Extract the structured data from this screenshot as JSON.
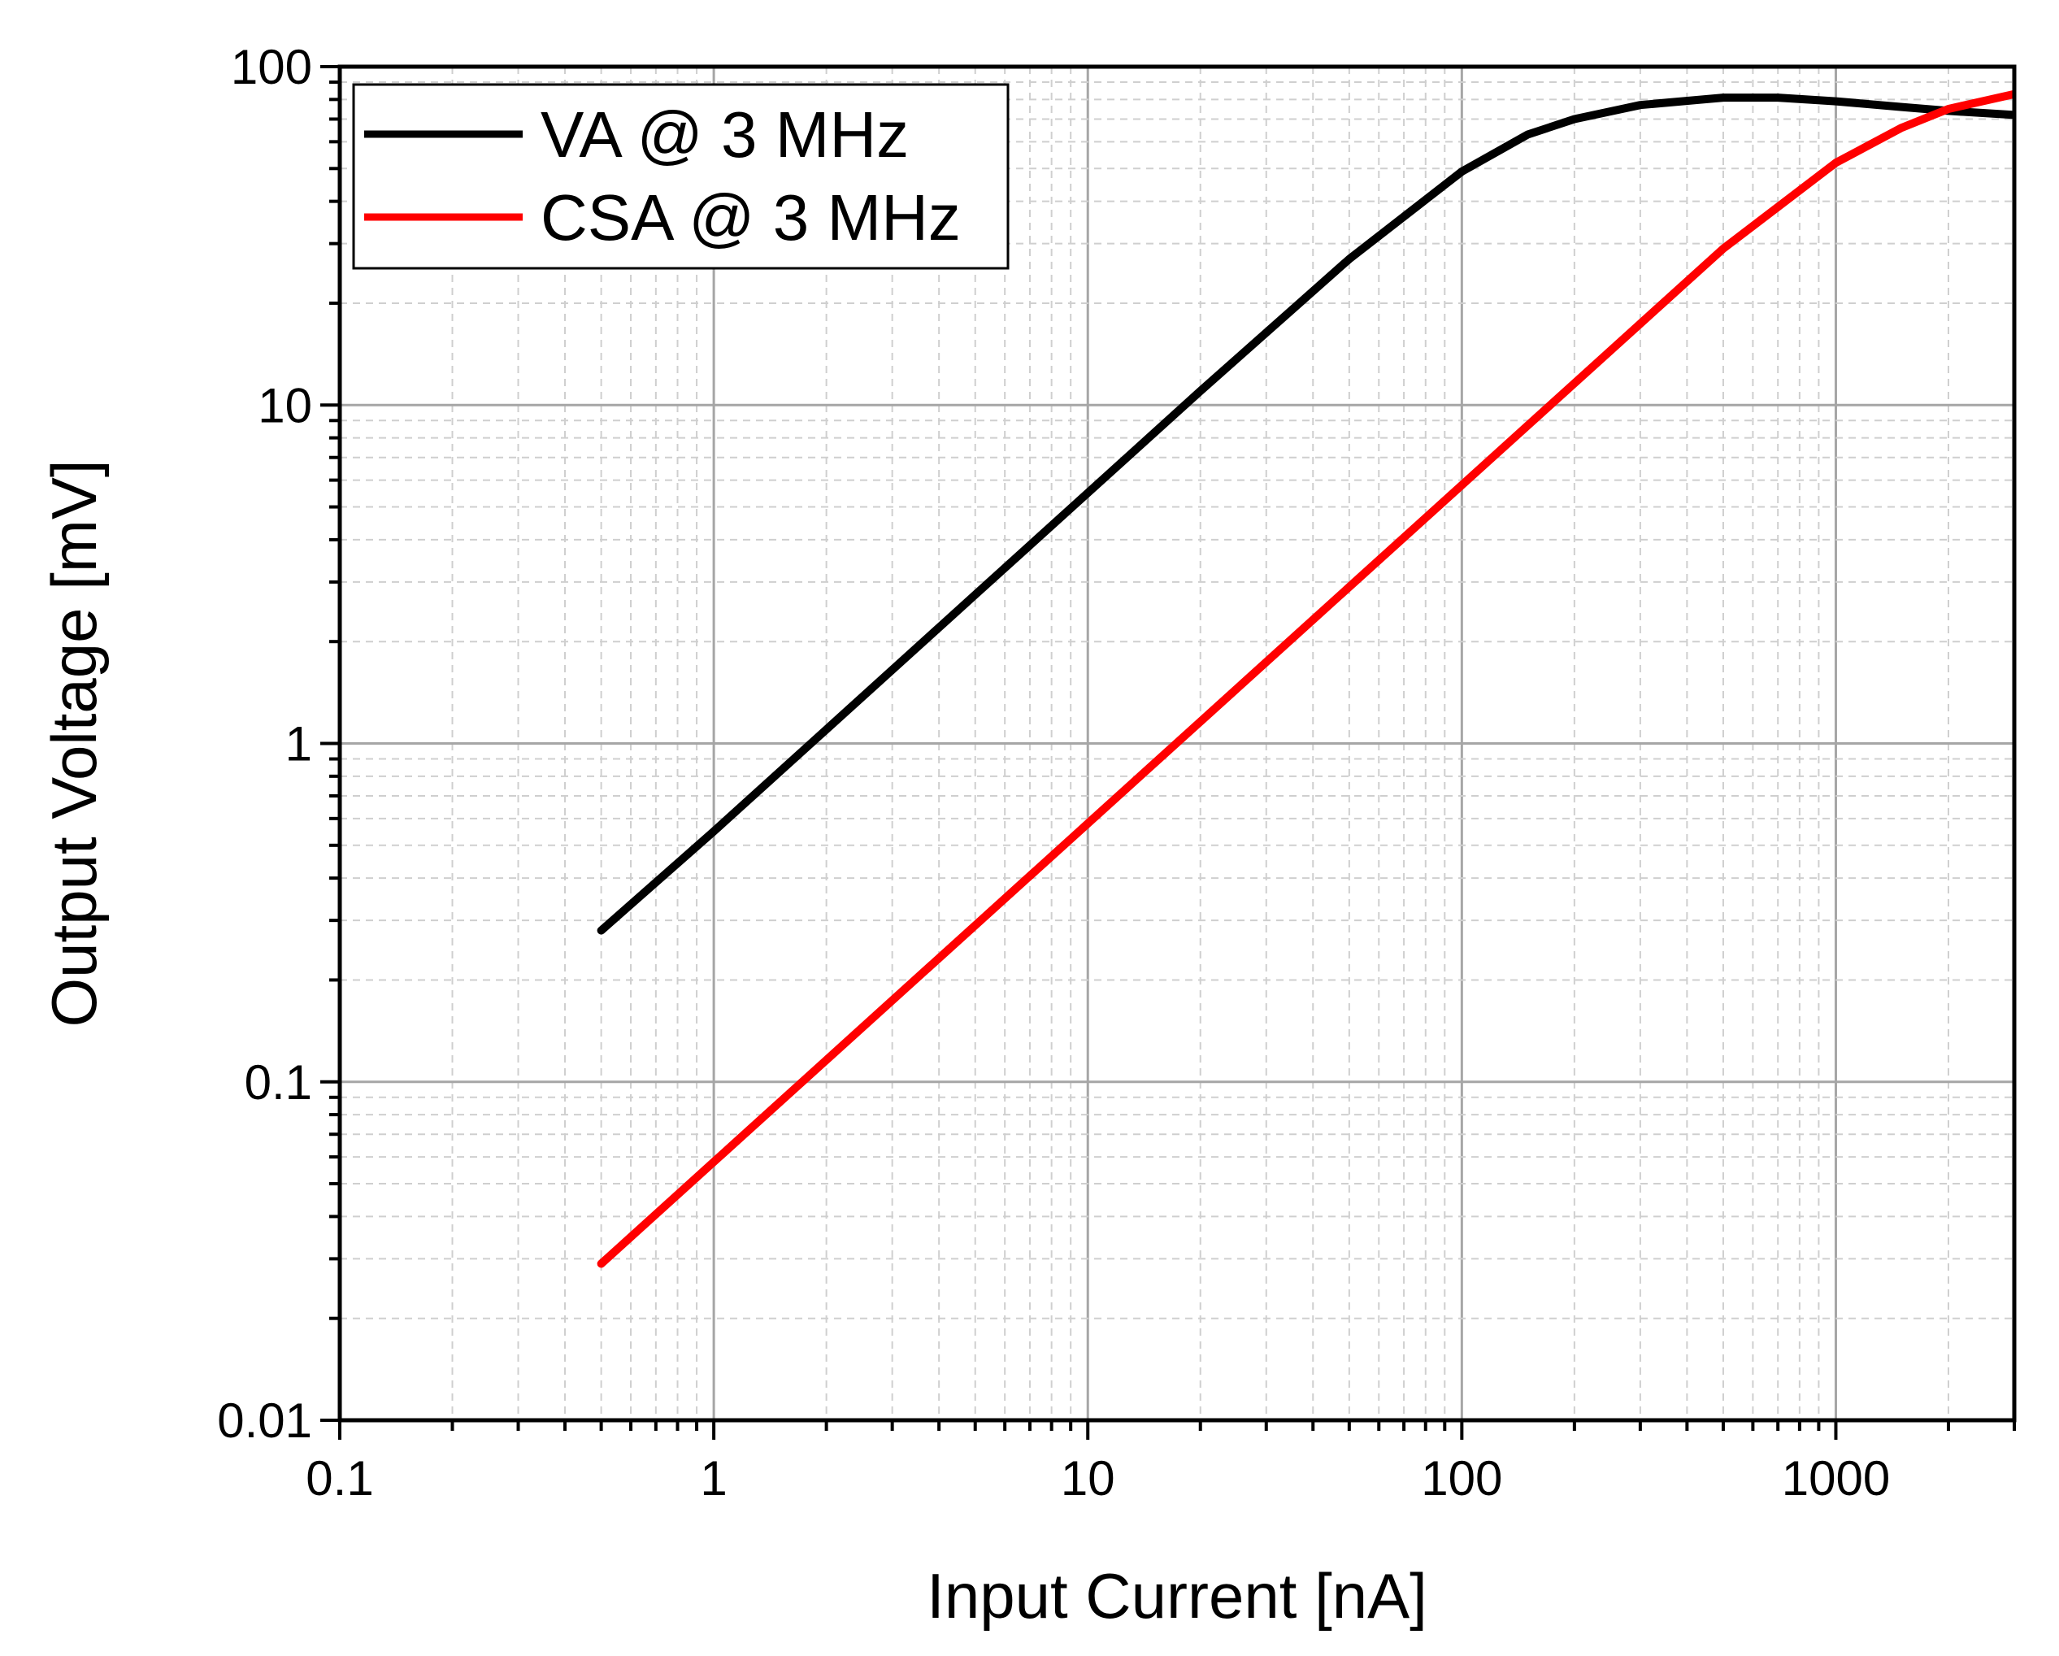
{
  "chart_data": {
    "type": "line",
    "title": "",
    "xlabel": "Input Current [nA]",
    "ylabel": "Output Voltage [mV]",
    "x_scale": "log",
    "y_scale": "log",
    "xlim": [
      0.1,
      3000
    ],
    "ylim": [
      0.01,
      100
    ],
    "grid": true,
    "legend_position": "top-left",
    "x_ticks": [
      {
        "value": 0.1,
        "label": "0.1"
      },
      {
        "value": 1,
        "label": "1"
      },
      {
        "value": 10,
        "label": "10"
      },
      {
        "value": 100,
        "label": "100"
      },
      {
        "value": 1000,
        "label": "1000"
      }
    ],
    "y_ticks": [
      {
        "value": 0.01,
        "label": "0.01"
      },
      {
        "value": 0.1,
        "label": "0.1"
      },
      {
        "value": 1,
        "label": "1"
      },
      {
        "value": 10,
        "label": "10"
      },
      {
        "value": 100,
        "label": "100"
      }
    ],
    "series": [
      {
        "name": "VA @ 3 MHz",
        "color": "#000000",
        "x": [
          0.5,
          1,
          2,
          5,
          10,
          20,
          50,
          100,
          150,
          200,
          300,
          500,
          700,
          1000,
          1500,
          2000,
          3000
        ],
        "y": [
          0.28,
          0.55,
          1.1,
          2.75,
          5.5,
          11,
          27,
          49,
          63,
          70,
          77,
          81,
          81,
          79,
          76,
          74,
          72
        ]
      },
      {
        "name": "CSA @ 3 MHz",
        "color": "#ff0000",
        "x": [
          0.5,
          1,
          2,
          5,
          10,
          20,
          50,
          100,
          200,
          500,
          1000,
          1500,
          2000,
          3000
        ],
        "y": [
          0.029,
          0.058,
          0.116,
          0.29,
          0.58,
          1.16,
          2.9,
          5.8,
          11.6,
          29,
          52,
          66,
          75,
          83
        ]
      }
    ]
  }
}
